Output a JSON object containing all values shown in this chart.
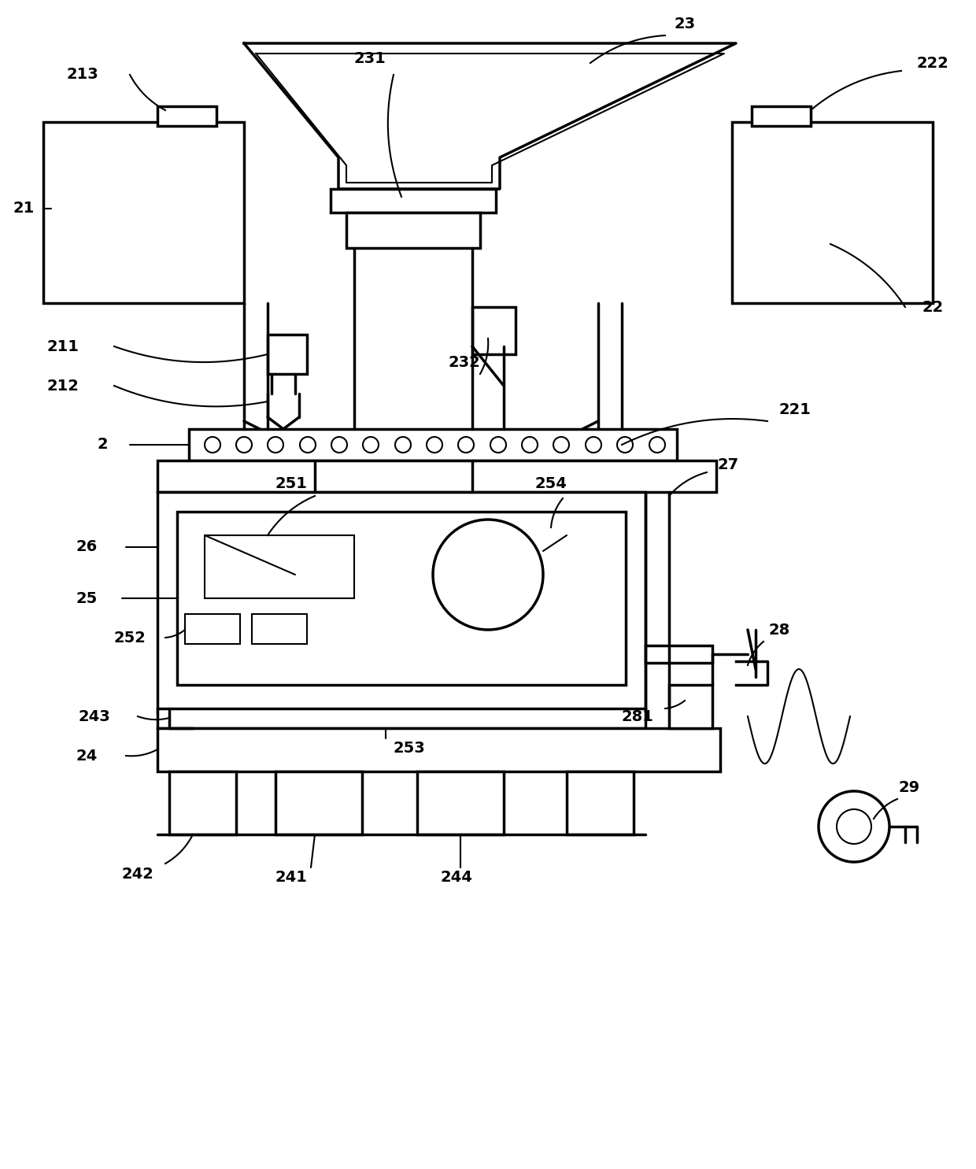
{
  "bg_color": "#ffffff",
  "lc": "#000000",
  "lw": 2.5,
  "tlw": 1.5,
  "fs": 14,
  "fw": "bold"
}
